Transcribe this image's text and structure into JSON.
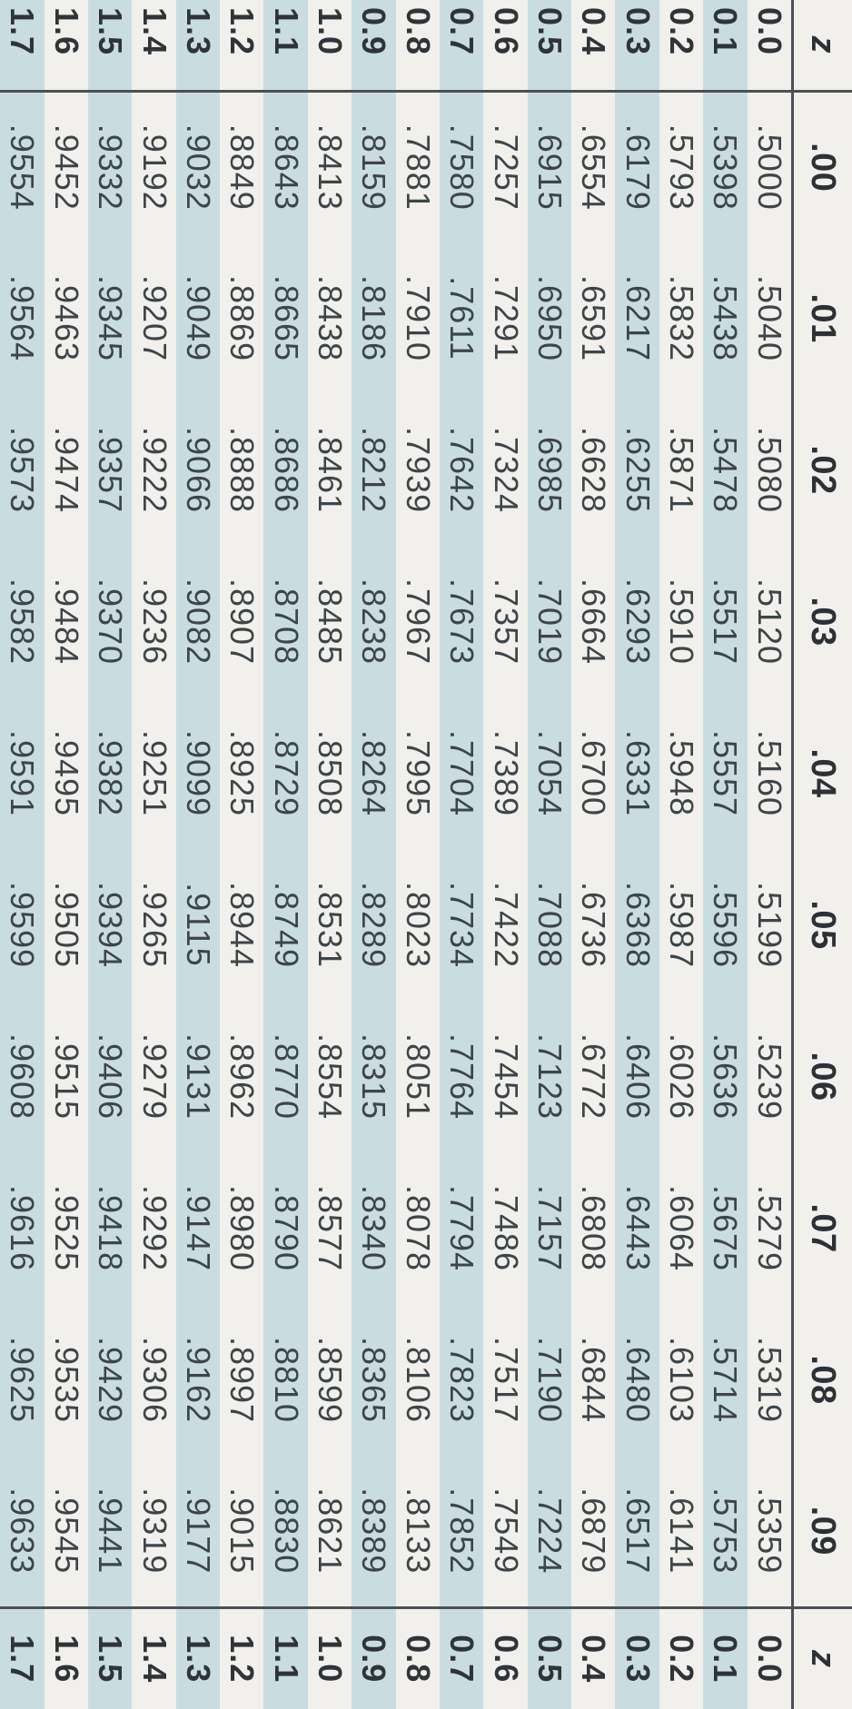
{
  "table": {
    "header": {
      "left": "z",
      "right": "z",
      "columns": [
        ".00",
        ".01",
        ".02",
        ".03",
        ".04",
        ".05",
        ".06",
        ".07",
        ".08",
        ".09"
      ]
    },
    "rows": [
      {
        "z": "0.0",
        "values": [
          ".5000",
          ".5040",
          ".5080",
          ".5120",
          ".5160",
          ".5199",
          ".5239",
          ".5279",
          ".5319",
          ".5359"
        ]
      },
      {
        "z": "0.1",
        "values": [
          ".5398",
          ".5438",
          ".5478",
          ".5517",
          ".5557",
          ".5596",
          ".5636",
          ".5675",
          ".5714",
          ".5753"
        ]
      },
      {
        "z": "0.2",
        "values": [
          ".5793",
          ".5832",
          ".5871",
          ".5910",
          ".5948",
          ".5987",
          ".6026",
          ".6064",
          ".6103",
          ".6141"
        ]
      },
      {
        "z": "0.3",
        "values": [
          ".6179",
          ".6217",
          ".6255",
          ".6293",
          ".6331",
          ".6368",
          ".6406",
          ".6443",
          ".6480",
          ".6517"
        ]
      },
      {
        "z": "0.4",
        "values": [
          ".6554",
          ".6591",
          ".6628",
          ".6664",
          ".6700",
          ".6736",
          ".6772",
          ".6808",
          ".6844",
          ".6879"
        ]
      },
      {
        "z": "0.5",
        "values": [
          ".6915",
          ".6950",
          ".6985",
          ".7019",
          ".7054",
          ".7088",
          ".7123",
          ".7157",
          ".7190",
          ".7224"
        ]
      },
      {
        "z": "0.6",
        "values": [
          ".7257",
          ".7291",
          ".7324",
          ".7357",
          ".7389",
          ".7422",
          ".7454",
          ".7486",
          ".7517",
          ".7549"
        ]
      },
      {
        "z": "0.7",
        "values": [
          ".7580",
          ".7611",
          ".7642",
          ".7673",
          ".7704",
          ".7734",
          ".7764",
          ".7794",
          ".7823",
          ".7852"
        ]
      },
      {
        "z": "0.8",
        "values": [
          ".7881",
          ".7910",
          ".7939",
          ".7967",
          ".7995",
          ".8023",
          ".8051",
          ".8078",
          ".8106",
          ".8133"
        ]
      },
      {
        "z": "0.9",
        "values": [
          ".8159",
          ".8186",
          ".8212",
          ".8238",
          ".8264",
          ".8289",
          ".8315",
          ".8340",
          ".8365",
          ".8389"
        ]
      },
      {
        "z": "1.0",
        "values": [
          ".8413",
          ".8438",
          ".8461",
          ".8485",
          ".8508",
          ".8531",
          ".8554",
          ".8577",
          ".8599",
          ".8621"
        ]
      },
      {
        "z": "1.1",
        "values": [
          ".8643",
          ".8665",
          ".8686",
          ".8708",
          ".8729",
          ".8749",
          ".8770",
          ".8790",
          ".8810",
          ".8830"
        ]
      },
      {
        "z": "1.2",
        "values": [
          ".8849",
          ".8869",
          ".8888",
          ".8907",
          ".8925",
          ".8944",
          ".8962",
          ".8980",
          ".8997",
          ".9015"
        ]
      },
      {
        "z": "1.3",
        "values": [
          ".9032",
          ".9049",
          ".9066",
          ".9082",
          ".9099",
          ".9115",
          ".9131",
          ".9147",
          ".9162",
          ".9177"
        ]
      },
      {
        "z": "1.4",
        "values": [
          ".9192",
          ".9207",
          ".9222",
          ".9236",
          ".9251",
          ".9265",
          ".9279",
          ".9292",
          ".9306",
          ".9319"
        ]
      },
      {
        "z": "1.5",
        "values": [
          ".9332",
          ".9345",
          ".9357",
          ".9370",
          ".9382",
          ".9394",
          ".9406",
          ".9418",
          ".9429",
          ".9441"
        ]
      },
      {
        "z": "1.6",
        "values": [
          ".9452",
          ".9463",
          ".9474",
          ".9484",
          ".9495",
          ".9505",
          ".9515",
          ".9525",
          ".9535",
          ".9545"
        ]
      },
      {
        "z": "1.7",
        "values": [
          ".9554",
          ".9564",
          ".9573",
          ".9582",
          ".9591",
          ".9599",
          ".9608",
          ".9616",
          ".9625",
          ".9633"
        ]
      }
    ]
  },
  "colors": {
    "shade": "#c9dde0",
    "paper": "#f1f0ec",
    "rule": "#4a5055",
    "text": "#3d4549"
  }
}
